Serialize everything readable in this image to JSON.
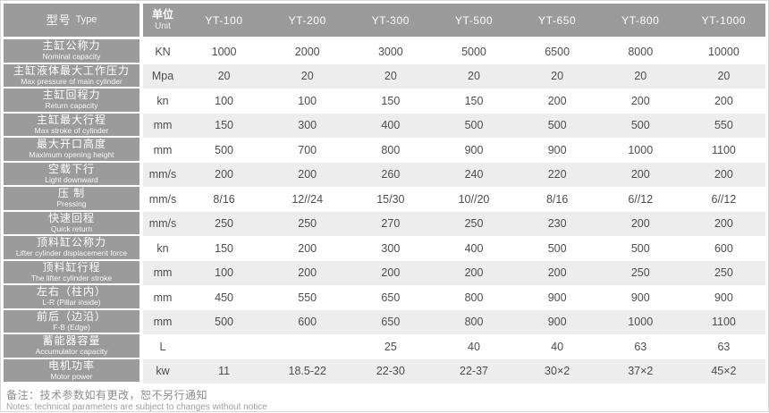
{
  "table": {
    "header": {
      "type_label_zh": "型号",
      "type_label_en": "Type",
      "unit_label_zh": "单位",
      "unit_label_en": "Unit",
      "models": [
        "YT-100",
        "YT-200",
        "YT-300",
        "YT-500",
        "YT-650",
        "YT-800",
        "YT-1000"
      ]
    },
    "rows": [
      {
        "zh": "主缸公称力",
        "en": "Nominal capacity",
        "unit": "KN",
        "values": [
          "1000",
          "2000",
          "3000",
          "5000",
          "6500",
          "8000",
          "10000"
        ]
      },
      {
        "zh": "主缸液体最大工作压力",
        "en": "Max pressure of main cylinder",
        "unit": "Mpa",
        "values": [
          "20",
          "20",
          "20",
          "20",
          "20",
          "20",
          "20"
        ]
      },
      {
        "zh": "主缸回程力",
        "en": "Return capacity",
        "unit": "kn",
        "values": [
          "100",
          "100",
          "150",
          "150",
          "200",
          "200",
          "200"
        ]
      },
      {
        "zh": "主缸最大行程",
        "en": "Max stroke of cylinder",
        "unit": "mm",
        "values": [
          "150",
          "300",
          "400",
          "500",
          "500",
          "500",
          "550"
        ]
      },
      {
        "zh": "最大开口高度",
        "en": "Maximum opening height",
        "unit": "mm",
        "values": [
          "500",
          "700",
          "800",
          "900",
          "900",
          "1000",
          "1100"
        ]
      },
      {
        "zh": "空载下行",
        "en": "Light downward",
        "unit": "mm/s",
        "values": [
          "200",
          "200",
          "260",
          "240",
          "220",
          "200",
          "200"
        ]
      },
      {
        "zh": "压 制",
        "en": "Pressing",
        "unit": "mm/s",
        "values": [
          "8/16",
          "12//24",
          "15/30",
          "10//20",
          "8/16",
          "6//12",
          "6//12"
        ]
      },
      {
        "zh": "快速回程",
        "en": "Quick return",
        "unit": "mm/s",
        "values": [
          "250",
          "250",
          "270",
          "250",
          "230",
          "200",
          "200"
        ]
      },
      {
        "zh": "顶料缸公称力",
        "en": "Lifter cylinder displacement force",
        "unit": "kn",
        "values": [
          "150",
          "200",
          "300",
          "400",
          "500",
          "500",
          "600"
        ]
      },
      {
        "zh": "顶料缸行程",
        "en": "The lifter cylinder stroke",
        "unit": "mm",
        "values": [
          "100",
          "200",
          "200",
          "200",
          "200",
          "250",
          "250"
        ]
      },
      {
        "zh": "左右（柱内）",
        "en": "L-R (Pillar inside)",
        "unit": "mm",
        "values": [
          "450",
          "550",
          "650",
          "800",
          "900",
          "900",
          "900"
        ]
      },
      {
        "zh": "前后（边沿）",
        "en": "F-B (Edge)",
        "unit": "mm",
        "values": [
          "500",
          "600",
          "650",
          "800",
          "900",
          "1000",
          "1100"
        ]
      },
      {
        "zh": "蓄能器容量",
        "en": "Accumulator capacity",
        "unit": "L",
        "values": [
          "",
          "",
          "25",
          "40",
          "40",
          "63",
          "63"
        ]
      },
      {
        "zh": "电机功率",
        "en": "Motor power",
        "unit": "kw",
        "values": [
          "11",
          "18.5-22",
          "22-30",
          "22-37",
          "30×2",
          "37×2",
          "45×2"
        ]
      }
    ]
  },
  "notes": {
    "zh": "备注：技术参数如有更改，恕不另行通知",
    "en": "Notes: technical parameters are subject to changes without notice"
  },
  "colors": {
    "header_bg": "#9b9b9b",
    "label_bg": "#9b9b9b",
    "stripe_bg": "#ededed",
    "header_text": "#ffffff",
    "value_text": "#4d4d4d",
    "note_text": "#8e8e8e"
  }
}
